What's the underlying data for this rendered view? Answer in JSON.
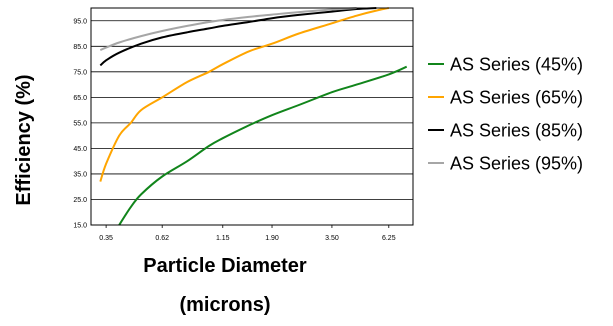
{
  "chart_data": {
    "type": "line",
    "title": "",
    "xlabel": "Particle Diameter (microns)",
    "xlabel_lines": [
      "Particle Diameter",
      "(microns)"
    ],
    "ylabel": "Efficiency (%)",
    "x_scale": "log",
    "xlim": [
      0.3,
      8.0
    ],
    "ylim": [
      15,
      100
    ],
    "x_ticks": [
      "0.35",
      "0.62",
      "1.15",
      "1.90",
      "3.50",
      "6.25"
    ],
    "y_ticks": [
      "15.0",
      "25.0",
      "35.0",
      "45.0",
      "55.0",
      "65.0",
      "75.0",
      "85.0",
      "95.0"
    ],
    "grid": "horizontal",
    "legend_position": "right",
    "series": [
      {
        "name": "AS Series (45%)",
        "color": "#11851b",
        "x": [
          0.4,
          0.45,
          0.5,
          0.62,
          0.8,
          1.0,
          1.15,
          1.5,
          1.9,
          2.5,
          3.5,
          4.5,
          6.25,
          7.5
        ],
        "y": [
          15,
          22,
          27,
          34,
          40,
          46,
          49,
          54,
          58,
          62,
          67,
          70,
          74,
          77
        ]
      },
      {
        "name": "AS Series (65%)",
        "color": "#ffa500",
        "x": [
          0.33,
          0.35,
          0.4,
          0.45,
          0.5,
          0.62,
          0.8,
          1.0,
          1.15,
          1.5,
          1.9,
          2.5,
          3.5,
          4.5,
          5.5,
          6.25
        ],
        "y": [
          32,
          39,
          50,
          55,
          60,
          65,
          71,
          75,
          78,
          83,
          86,
          90,
          94,
          97,
          99,
          100
        ]
      },
      {
        "name": "AS Series (85%)",
        "color": "#000000",
        "x": [
          0.33,
          0.35,
          0.4,
          0.5,
          0.62,
          0.8,
          1.0,
          1.15,
          1.5,
          1.9,
          2.5,
          3.5,
          4.5,
          5.5
        ],
        "y": [
          77.5,
          79.5,
          82.5,
          86,
          88.5,
          90.5,
          92,
          93,
          94.5,
          96,
          97.3,
          98.6,
          99.6,
          100
        ]
      },
      {
        "name": "AS Series (95%)",
        "color": "#a6a6a6",
        "x": [
          0.33,
          0.35,
          0.4,
          0.5,
          0.62,
          0.8,
          1.0,
          1.15,
          1.5,
          1.9,
          2.5,
          3.5,
          4.5
        ],
        "y": [
          83.5,
          84.5,
          86.5,
          89,
          91,
          93,
          94.5,
          95.3,
          96.5,
          97.4,
          98.4,
          99.4,
          100
        ]
      }
    ]
  }
}
